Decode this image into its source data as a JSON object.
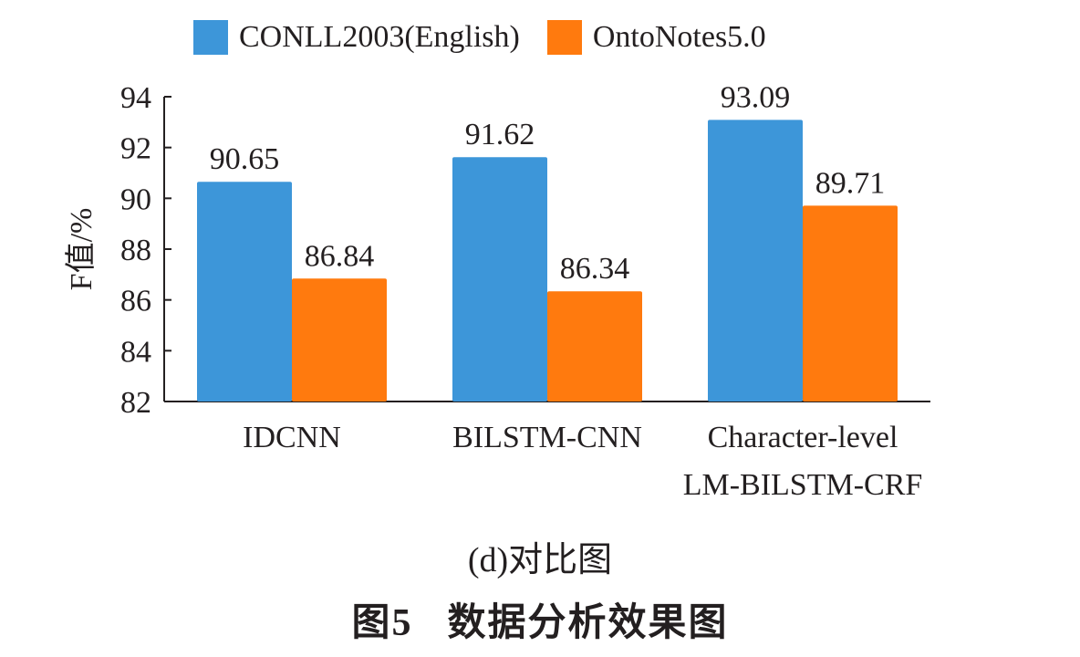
{
  "chart_data": {
    "type": "bar",
    "categories": [
      "IDCNN",
      "BILSTM-CNN",
      "Character-level\nLM-BILSTM-CRF"
    ],
    "series": [
      {
        "name": "CONLL2003(English)",
        "color": "#3d96d9",
        "values": [
          90.65,
          91.62,
          93.09
        ]
      },
      {
        "name": "OntoNotes5.0",
        "color": "#ff7a0e",
        "values": [
          86.84,
          86.34,
          89.71
        ]
      }
    ],
    "data_labels": [
      [
        "90.65",
        "91.62",
        "93.09"
      ],
      [
        "86.84",
        "86.34",
        "89.71"
      ]
    ],
    "ylabel": "F值/%",
    "ylim": [
      82,
      94
    ],
    "yticks": [
      "82",
      "84",
      "86",
      "88",
      "90",
      "92",
      "94"
    ],
    "grid": false,
    "legend_position": "top"
  },
  "captions": {
    "sub": "(d)对比图",
    "figure_num": "图5",
    "figure_title": "数据分析效果图"
  }
}
